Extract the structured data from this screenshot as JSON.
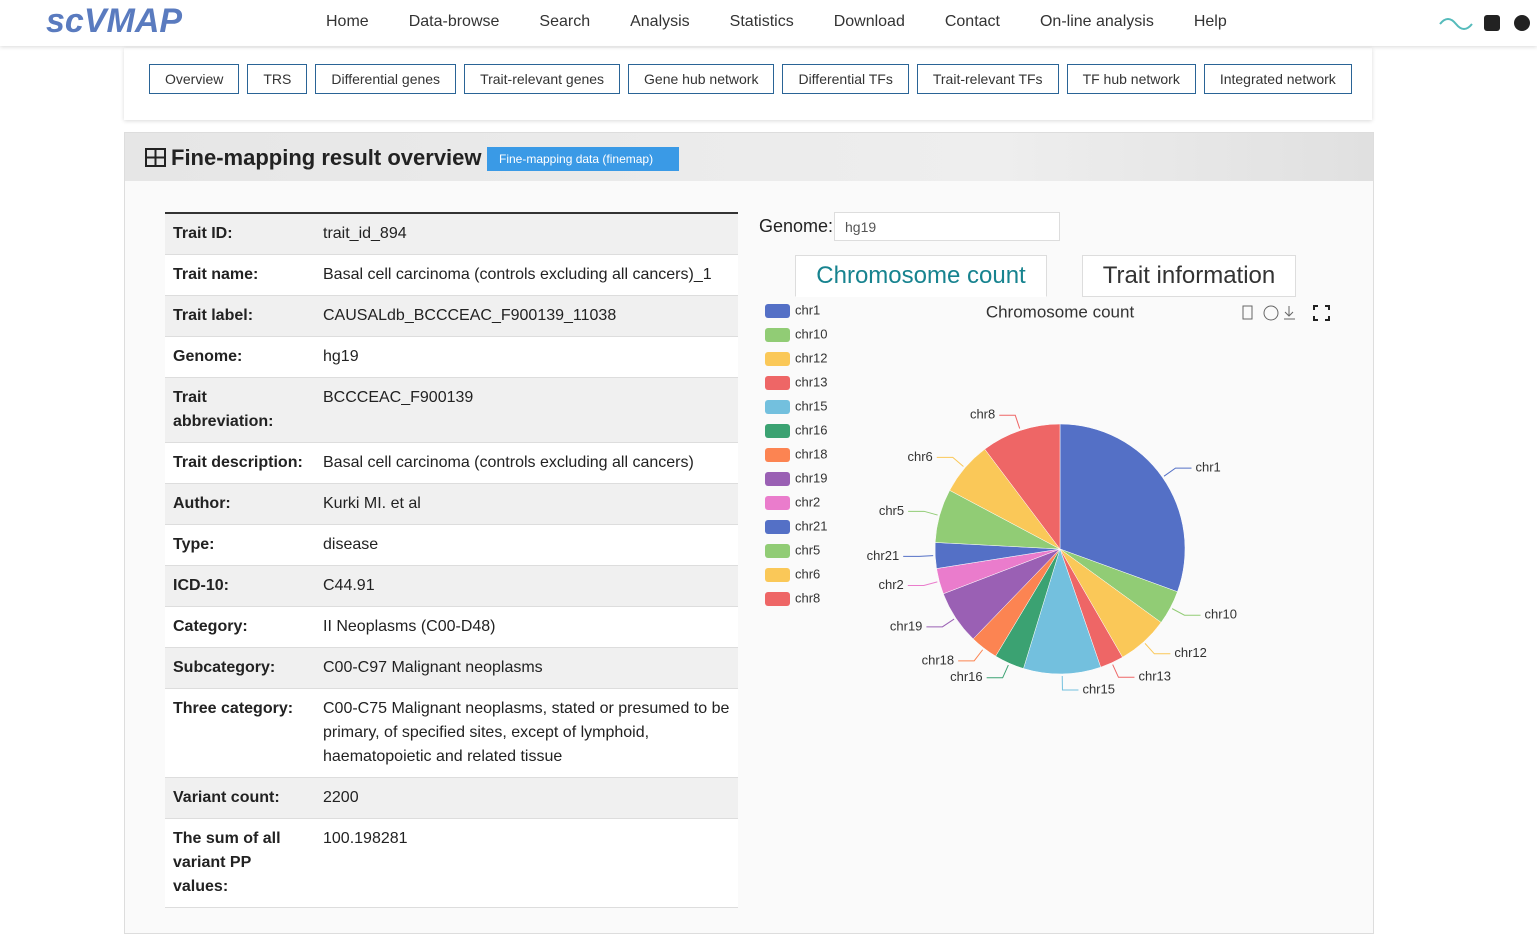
{
  "header": {
    "logo": "scVMAP",
    "nav": [
      "Home",
      "Data-browse",
      "Search",
      "Analysis",
      "Statistics",
      "Download",
      "Contact",
      "On-line analysis",
      "Help"
    ]
  },
  "tabs": [
    "Overview",
    "TRS",
    "Differential genes",
    "Trait-relevant genes",
    "Gene hub network",
    "Differential TFs",
    "Trait-relevant TFs",
    "TF hub network",
    "Integrated network"
  ],
  "section": {
    "title": "Fine-mapping result overview",
    "button": "Fine-mapping data (finemap)"
  },
  "table": {
    "rows": [
      [
        "Trait ID:",
        "trait_id_894"
      ],
      [
        "Trait name:",
        "Basal cell carcinoma (controls excluding all cancers)_1"
      ],
      [
        "Trait label:",
        "CAUSALdb_BCCCEAC_F900139_11038"
      ],
      [
        "Genome:",
        "hg19"
      ],
      [
        "Trait abbreviation:",
        "BCCCEAC_F900139"
      ],
      [
        "Trait description:",
        "Basal cell carcinoma (controls excluding all cancers)"
      ],
      [
        "Author:",
        "Kurki MI. et al"
      ],
      [
        "Type:",
        "disease"
      ],
      [
        "ICD-10:",
        "C44.91"
      ],
      [
        "Category:",
        "II Neoplasms (C00-D48)"
      ],
      [
        "Subcategory:",
        "C00-C97 Malignant neoplasms"
      ],
      [
        "Three category:",
        "C00-C75 Malignant neoplasms, stated or presumed to be primary, of specified sites, except of lymphoid, haematopoietic and related tissue"
      ],
      [
        "Variant count:",
        "2200"
      ],
      [
        "The sum of all variant PP values:",
        "100.198281"
      ]
    ]
  },
  "genome": {
    "label": "Genome:",
    "value": "hg19"
  },
  "chart_tabs": [
    "Chromosome count",
    "Trait information"
  ],
  "chart_data": {
    "type": "pie",
    "title": "Chromosome count",
    "categories": [
      "chr1",
      "chr10",
      "chr12",
      "chr13",
      "chr15",
      "chr16",
      "chr18",
      "chr19",
      "chr2",
      "chr21",
      "chr5",
      "chr6",
      "chr8"
    ],
    "values": [
      110,
      16,
      24,
      11,
      36,
      14,
      13,
      25,
      12,
      12,
      25,
      25,
      37
    ],
    "colors": [
      "#5470c6",
      "#91cc75",
      "#fac858",
      "#ee6666",
      "#73c0de",
      "#3ba272",
      "#fc8452",
      "#9a60b4",
      "#ea7ccc",
      "#5470c6",
      "#91cc75",
      "#fac858",
      "#ee6666"
    ],
    "legend": "left"
  }
}
